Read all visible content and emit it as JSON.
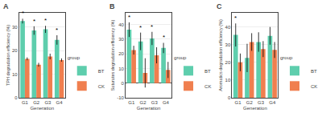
{
  "chart_data": [
    {
      "type": "bar",
      "title": "A",
      "xlabel": "Generation",
      "ylabel": "TPH degradation efficiency (%)",
      "categories": [
        "G1",
        "G2",
        "G3",
        "G4"
      ],
      "series": [
        {
          "name": "BT",
          "color": "#5ecead",
          "values": [
            32.5,
            28.5,
            29.0,
            24.5
          ],
          "errors": [
            1.0,
            1.8,
            1.5,
            2.0
          ]
        },
        {
          "name": "CK",
          "color": "#f07f4f",
          "values": [
            16.5,
            14.0,
            17.5,
            16.0
          ],
          "errors": [
            0.6,
            0.8,
            1.2,
            0.7
          ]
        }
      ],
      "annotations": [
        {
          "text": "*",
          "category": "G1",
          "series": "BT"
        },
        {
          "text": "*",
          "category": "G2",
          "series": "BT"
        },
        {
          "text": "*",
          "category": "G3",
          "series": "BT"
        },
        {
          "text": "*",
          "category": "G4",
          "series": "BT"
        }
      ],
      "ylim": [
        0,
        36
      ],
      "yticks": [
        0,
        10,
        20,
        30
      ],
      "grid": true,
      "legend": "lower right",
      "legend_title": "group"
    },
    {
      "type": "bar",
      "title": "B",
      "xlabel": "Generation",
      "ylabel": "Saturates degradation efficiency (%)",
      "categories": [
        "G1",
        "G2",
        "G3",
        "G4"
      ],
      "series": [
        {
          "name": "BT",
          "color": "#5ecead",
          "values": [
            36.5,
            28.5,
            30.5,
            24.0
          ],
          "errors": [
            5.0,
            6.0,
            4.5,
            3.5
          ]
        },
        {
          "name": "CK",
          "color": "#f07f4f",
          "values": [
            22.5,
            7.0,
            19.0,
            9.0
          ],
          "errors": [
            3.0,
            10.0,
            5.5,
            5.5
          ]
        }
      ],
      "annotations": [
        {
          "text": "*",
          "category": "G1",
          "series": "BT"
        },
        {
          "text": "*",
          "category": "G2",
          "series": "BT"
        },
        {
          "text": "*",
          "category": "G3",
          "series": "BT"
        },
        {
          "text": "*",
          "category": "G4",
          "series": "BT"
        }
      ],
      "ylim": [
        -10,
        48
      ],
      "yticks": [
        -10,
        0,
        10,
        20,
        30,
        40
      ],
      "grid": true,
      "legend": "lower right",
      "legend_title": "group"
    },
    {
      "type": "bar",
      "title": "C",
      "xlabel": "Generation",
      "ylabel": "Aromatics degradation efficiency (%)",
      "categories": [
        "G1",
        "G2",
        "G3",
        "G4"
      ],
      "series": [
        {
          "name": "BT",
          "color": "#5ecead",
          "values": [
            35.5,
            22.5,
            31.5,
            35.0
          ],
          "errors": [
            6.5,
            8.0,
            5.5,
            5.0
          ]
        },
        {
          "name": "CK",
          "color": "#f07f4f",
          "values": [
            20.0,
            31.5,
            27.5,
            27.0
          ],
          "errors": [
            5.0,
            5.0,
            4.5,
            4.5
          ]
        }
      ],
      "annotations": [
        {
          "text": "*",
          "category": "G1",
          "series": "BT"
        }
      ],
      "ylim": [
        0,
        48
      ],
      "yticks": [
        0,
        10,
        20,
        30,
        40
      ],
      "grid": true,
      "legend": "lower right",
      "legend_title": "group"
    }
  ]
}
